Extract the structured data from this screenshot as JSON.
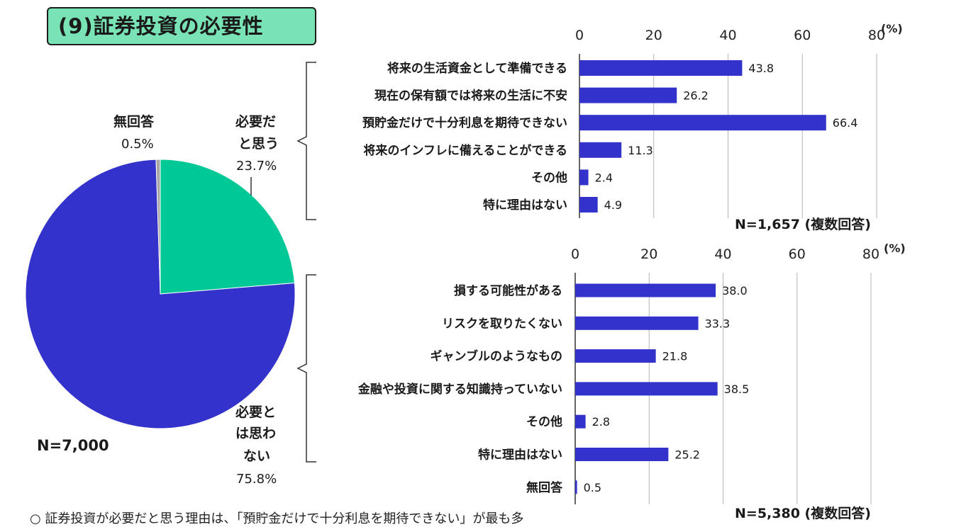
{
  "title": "(9)証券投資の必要性",
  "pie": {
    "n_label": "N=7,000",
    "slices": [
      {
        "label": "必要だと思う",
        "label_lines": [
          "必要だ",
          "と思う"
        ],
        "value": 23.7,
        "pct_text": "23.7%",
        "color": "#00c896"
      },
      {
        "label": "必要とは思わない",
        "label_lines": [
          "必要と",
          "は思わ",
          "ない"
        ],
        "value": 75.8,
        "pct_text": "75.8%",
        "color": "#3333cc"
      },
      {
        "label": "無回答",
        "label_lines": [
          "無回答"
        ],
        "value": 0.5,
        "pct_text": "0.5%",
        "color": "#a6a6a6"
      }
    ]
  },
  "chart_data": [
    {
      "type": "bar",
      "orientation": "horizontal",
      "categories": [
        "将来の生活資金として準備できる",
        "現在の保有額では将来の生活に不安",
        "預貯金だけで十分利息を期待できない",
        "将来のインフレに備えることができる",
        "その他",
        "特に理由はない"
      ],
      "values": [
        43.8,
        26.2,
        66.4,
        11.3,
        2.4,
        4.9
      ],
      "value_labels": [
        "43.8",
        "26.2",
        "66.4",
        "11.3",
        "2.4",
        "4.9"
      ],
      "xlim": [
        0,
        80
      ],
      "ticks": [
        "0",
        "20",
        "40",
        "60",
        "80"
      ],
      "unit": "(%)",
      "grid": true,
      "color": "#3333cc",
      "note": "N=1,657 (複数回答)"
    },
    {
      "type": "bar",
      "orientation": "horizontal",
      "categories": [
        "損する可能性がある",
        "リスクを取りたくない",
        "ギャンブルのようなもの",
        "金融や投資に関する知識持っていない",
        "その他",
        "特に理由はない",
        "無回答"
      ],
      "values": [
        38.0,
        33.3,
        21.8,
        38.5,
        2.8,
        25.2,
        0.5
      ],
      "value_labels": [
        "38.0",
        "33.3",
        "21.8",
        "38.5",
        "2.8",
        "25.2",
        "0.5"
      ],
      "xlim": [
        0,
        80
      ],
      "ticks": [
        "0",
        "20",
        "40",
        "60",
        "80"
      ],
      "unit": "(%)",
      "grid": true,
      "color": "#3333cc",
      "note": "N=5,380 (複数回答)"
    }
  ],
  "footer_text": "○ 証券投資が必要だと思う理由は、「預貯金だけで十分利息を期待できない」が最も多"
}
